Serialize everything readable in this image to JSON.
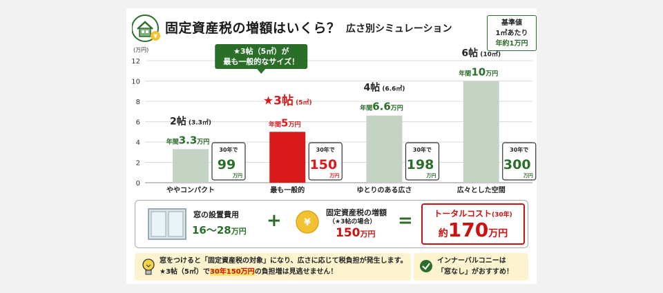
{
  "header": {
    "title": "固定資産税の増額はいくら？",
    "subtitle": "広さ別シミュレーション",
    "basis": [
      "基準値",
      "1㎡あたり",
      "年約1万円"
    ]
  },
  "chart_data": {
    "type": "bar",
    "ylabel": "(万円)",
    "ylim": [
      0,
      12
    ],
    "yticks": [
      "0",
      "2",
      "4",
      "6",
      "8",
      "10",
      "12"
    ],
    "categories": [
      "ややコンパクト",
      "最も一般的",
      "ゆとりのある広さ",
      "広々とした空間"
    ],
    "values": [
      3.3,
      5,
      6.6,
      10
    ],
    "size_main": [
      "2帖",
      "3帖",
      "4帖",
      "6帖"
    ],
    "size_sub": [
      "(3.3㎡)",
      "(5㎡)",
      "(6.6㎡)",
      "(10㎡)"
    ],
    "annual_prefix": "年間",
    "annual_values": [
      "3.3",
      "5",
      "6.6",
      "10"
    ],
    "unit": "万円",
    "thirty_label": "30年で",
    "thirty_values": [
      "99",
      "150",
      "198",
      "300"
    ],
    "callout": [
      "★3帖（5㎡）が",
      "最も一般的なサイズ！"
    ],
    "highlight_index": 1,
    "colors": {
      "bar": "#c5d3c5",
      "highlight": "#d91a1a",
      "green": "#2a6e2a",
      "red": "#d91a1a"
    }
  },
  "summary": {
    "window_label": "窓の設置費用",
    "window_value": "16〜28",
    "window_unit": "万円",
    "plus": "+",
    "tax_label": "固定資産税の増額",
    "tax_sub": "（★3帖の場合）",
    "tax_value": "150",
    "tax_unit": "万円",
    "equals": "=",
    "total_label": "トータルコスト",
    "total_sub": "(30年)",
    "total_prefix": "約",
    "total_value": "170",
    "total_unit": "万円"
  },
  "tip": {
    "line1": "窓をつけると「固定資産税の対象」になり、広さに応じて税負担が発生します。",
    "line2_pre": "★3帖（5㎡）で",
    "line2_hl": "30年150万円",
    "line2_post": "の負担増は見逃せません！"
  },
  "recommend": {
    "line1": "インナーバルコニーは",
    "line2": "「窓なし」がおすすめ！"
  }
}
